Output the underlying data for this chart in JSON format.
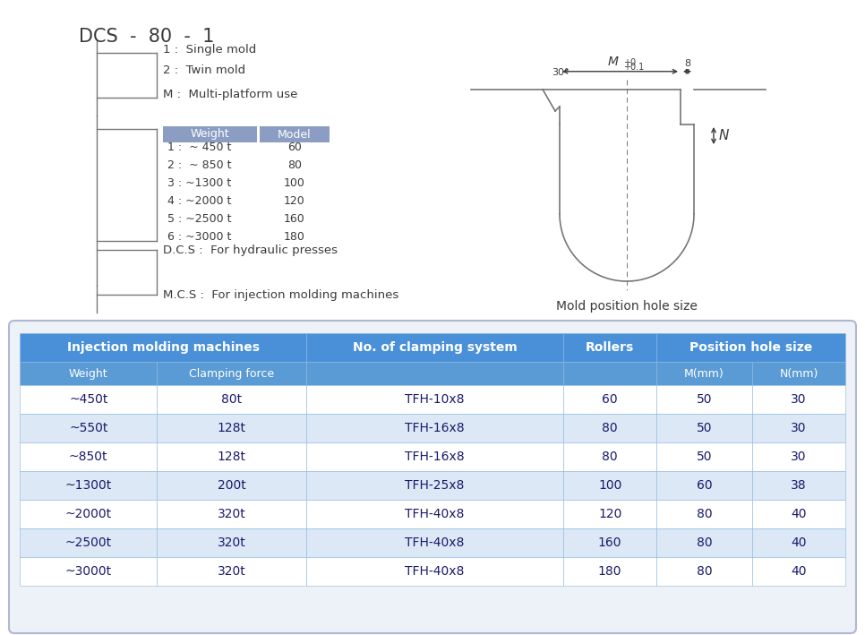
{
  "title": "DCS  -  80  -  1",
  "bg_color": "#ffffff",
  "top_section": {
    "branch1_label": "1 :  Single mold",
    "branch2_label": "2 :  Twin mold",
    "branch3_label": "M :  Multi-platform use",
    "weight_header": "Weight",
    "model_header": "Model",
    "table_header_color": "#8b9dc3",
    "table_rows": [
      [
        "1 :  ~ 450 t",
        "60"
      ],
      [
        "2 :  ~ 850 t",
        "80"
      ],
      [
        "3 : ~1300 t",
        "100"
      ],
      [
        "4 : ~2000 t",
        "120"
      ],
      [
        "5 : ~2500 t",
        "160"
      ],
      [
        "6 : ~3000 t",
        "180"
      ]
    ],
    "dcs_label": "D.C.S :  For hydraulic presses",
    "mcs_label": "M.C.S :  For injection molding machines"
  },
  "diagram_label": "Mold position hole size",
  "bottom_table": {
    "rows": [
      [
        "~450t",
        "80t",
        "TFH-10x8",
        "60",
        "50",
        "30"
      ],
      [
        "~550t",
        "128t",
        "TFH-16x8",
        "80",
        "50",
        "30"
      ],
      [
        "~850t",
        "128t",
        "TFH-16x8",
        "80",
        "50",
        "30"
      ],
      [
        "~1300t",
        "200t",
        "TFH-25x8",
        "100",
        "60",
        "38"
      ],
      [
        "~2000t",
        "320t",
        "TFH-40x8",
        "120",
        "80",
        "40"
      ],
      [
        "~2500t",
        "320t",
        "TFH-40x8",
        "160",
        "80",
        "40"
      ],
      [
        "~3000t",
        "320t",
        "TFH-40x8",
        "180",
        "80",
        "40"
      ]
    ]
  },
  "line_color": "#777777",
  "text_color": "#3a3a3a"
}
